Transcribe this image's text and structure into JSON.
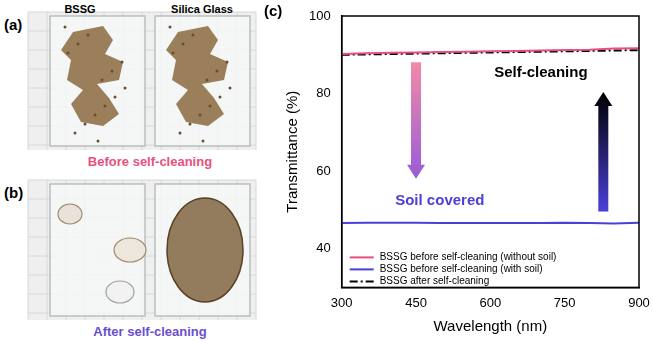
{
  "photos": [
    {
      "label": "(a)",
      "sample_labels": [
        "BSSG",
        "Silica Glass"
      ],
      "caption": "Before self-cleaning"
    },
    {
      "label": "(b)",
      "caption": "After self-cleaning"
    }
  ],
  "chart_data": {
    "panel_label": "(c)",
    "type": "line",
    "x_label": "Wavelength (nm)",
    "y_label": "Transmittance (%)",
    "x": [
      300,
      350,
      400,
      450,
      500,
      550,
      600,
      650,
      700,
      750,
      800,
      850,
      900
    ],
    "series": [
      {
        "name": "BSSG before self-cleaning (without soil)",
        "color": "#e8507e",
        "line_style": "solid",
        "values": [
          90.2,
          90.4,
          90.5,
          90.6,
          90.7,
          90.8,
          90.9,
          91.0,
          91.1,
          91.2,
          91.3,
          91.6,
          91.7
        ]
      },
      {
        "name": "BSSG before self-cleaning (with soil)",
        "color": "#4a3fd8",
        "line_style": "solid",
        "values": [
          46.6,
          46.7,
          46.7,
          46.7,
          46.6,
          46.6,
          46.6,
          46.6,
          46.6,
          46.7,
          46.6,
          46.5,
          46.7
        ]
      },
      {
        "name": "BSSG after self-cleaning",
        "color": "#000000",
        "line_style": "dashdot",
        "values": [
          90.0,
          90.1,
          90.2,
          90.3,
          90.4,
          90.5,
          90.6,
          90.7,
          90.8,
          90.9,
          91.0,
          91.1,
          91.2
        ]
      }
    ],
    "xlim": [
      300,
      900
    ],
    "xticks": [
      300,
      450,
      600,
      750,
      900
    ],
    "ylim": [
      30,
      100
    ],
    "yticks": [
      40,
      60,
      80,
      100
    ],
    "grid": false,
    "legend": "lower left",
    "annotations": [
      "Soil covered",
      "Self-cleaning"
    ]
  }
}
